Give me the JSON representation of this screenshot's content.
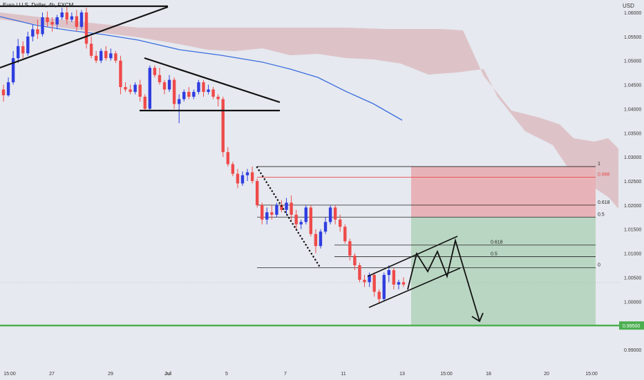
{
  "header": {
    "symbol_title": "Euro / U.S. Dollar, 4h, FXCM"
  },
  "price_axis": {
    "currency": "USD",
    "current_price_label": "0.99500"
  },
  "colors": {
    "up": "#2f3de0",
    "down": "#ef4a4a",
    "cloud": "#d9b2b8",
    "ma": "#3a6de0",
    "target_zone": "#b9d6c2",
    "stop_zone": "#e8b3b8",
    "support_line": "#4caf50"
  },
  "chart_data": {
    "type": "candlestick",
    "y_ticks": [
      "1.06000",
      "1.05500",
      "1.05000",
      "1.04500",
      "1.04000",
      "1.03500",
      "1.03000",
      "1.02500",
      "1.02000",
      "1.01500",
      "1.01000",
      "1.00500",
      "1.00000",
      "0.99500",
      "0.99000"
    ],
    "x_ticks": [
      "15:00",
      "27",
      "29",
      "Jul",
      "5",
      "7",
      "11",
      "13",
      "15:00",
      "18",
      "20",
      "15:00"
    ],
    "ylim": [
      0.9875,
      1.0615
    ],
    "support_price": 0.995,
    "fib_upper": {
      "levels": [
        "1",
        "0.886",
        "0.618",
        "0.5"
      ],
      "prices": [
        1.028,
        1.0258,
        1.02,
        1.0175
      ]
    },
    "fib_lower": {
      "levels": [
        "0.618",
        "0.5",
        "0"
      ],
      "prices": [
        1.0117,
        1.0093,
        1.007
      ]
    },
    "trade_box": {
      "entry": 1.0175,
      "stop": 1.028,
      "target": 0.995
    },
    "candles": [
      [
        1.044,
        1.045,
        1.0415,
        1.0428
      ],
      [
        1.0428,
        1.0465,
        1.0425,
        1.0455
      ],
      [
        1.0455,
        1.052,
        1.045,
        1.0505
      ],
      [
        1.0505,
        1.0545,
        1.0495,
        1.053
      ],
      [
        1.053,
        1.054,
        1.0505,
        1.0515
      ],
      [
        1.0515,
        1.056,
        1.051,
        1.055
      ],
      [
        1.055,
        1.0575,
        1.054,
        1.0565
      ],
      [
        1.0565,
        1.0585,
        1.0545,
        1.0555
      ],
      [
        1.0555,
        1.06,
        1.055,
        1.059
      ],
      [
        1.059,
        1.0602,
        1.057,
        1.058
      ],
      [
        1.058,
        1.059,
        1.056,
        1.0575
      ],
      [
        1.0575,
        1.0595,
        1.0565,
        1.059
      ],
      [
        1.059,
        1.061,
        1.0585,
        1.06
      ],
      [
        1.06,
        1.0612,
        1.0575,
        1.0585
      ],
      [
        1.0585,
        1.06,
        1.058,
        1.0592
      ],
      [
        1.0592,
        1.0605,
        1.056,
        1.057
      ],
      [
        1.057,
        1.0605,
        1.0565,
        1.06
      ],
      [
        1.06,
        1.061,
        1.0525,
        1.0535
      ],
      [
        1.0535,
        1.055,
        1.0505,
        1.051
      ],
      [
        1.051,
        1.052,
        1.0495,
        1.05
      ],
      [
        1.05,
        1.0525,
        1.0495,
        1.052
      ],
      [
        1.052,
        1.053,
        1.05,
        1.0505
      ],
      [
        1.0505,
        1.0525,
        1.05,
        1.0515
      ],
      [
        1.0515,
        1.052,
        1.0495,
        1.05
      ],
      [
        1.05,
        1.051,
        1.043,
        1.0445
      ],
      [
        1.0445,
        1.0455,
        1.0435,
        1.044
      ],
      [
        1.044,
        1.045,
        1.043,
        1.0435
      ],
      [
        1.0435,
        1.0455,
        1.043,
        1.045
      ],
      [
        1.045,
        1.046,
        1.0415,
        1.0425
      ],
      [
        1.0425,
        1.043,
        1.0395,
        1.04
      ],
      [
        1.04,
        1.049,
        1.0395,
        1.0485
      ],
      [
        1.0485,
        1.049,
        1.0465,
        1.047
      ],
      [
        1.047,
        1.0485,
        1.045,
        1.0455
      ],
      [
        1.0455,
        1.046,
        1.043,
        1.044
      ],
      [
        1.044,
        1.047,
        1.0435,
        1.046
      ],
      [
        1.046,
        1.0465,
        1.04,
        1.041
      ],
      [
        1.041,
        1.043,
        1.037,
        1.042
      ],
      [
        1.042,
        1.044,
        1.0415,
        1.0435
      ],
      [
        1.0435,
        1.0445,
        1.042,
        1.0425
      ],
      [
        1.0425,
        1.044,
        1.042,
        1.0435
      ],
      [
        1.0435,
        1.046,
        1.043,
        1.0455
      ],
      [
        1.0455,
        1.046,
        1.0425,
        1.0435
      ],
      [
        1.0435,
        1.045,
        1.043,
        1.044
      ],
      [
        1.044,
        1.0445,
        1.042,
        1.0425
      ],
      [
        1.0425,
        1.043,
        1.0405,
        1.042
      ],
      [
        1.042,
        1.0425,
        1.03,
        1.031
      ],
      [
        1.031,
        1.032,
        1.028,
        1.0285
      ],
      [
        1.0285,
        1.029,
        1.026,
        1.0265
      ],
      [
        1.0265,
        1.0275,
        1.0235,
        1.0245
      ],
      [
        1.0245,
        1.027,
        1.024,
        1.0262
      ],
      [
        1.0262,
        1.0275,
        1.025,
        1.0268
      ],
      [
        1.0268,
        1.028,
        1.0245,
        1.025
      ],
      [
        1.025,
        1.0255,
        1.0195,
        1.02
      ],
      [
        1.02,
        1.0205,
        1.016,
        1.017
      ],
      [
        1.017,
        1.0195,
        1.016,
        1.0185
      ],
      [
        1.0185,
        1.02,
        1.017,
        1.018
      ],
      [
        1.018,
        1.0205,
        1.0175,
        1.02
      ],
      [
        1.02,
        1.021,
        1.0185,
        1.019
      ],
      [
        1.019,
        1.0215,
        1.018,
        1.0205
      ],
      [
        1.0205,
        1.022,
        1.017,
        1.018
      ],
      [
        1.018,
        1.019,
        1.015,
        1.016
      ],
      [
        1.016,
        1.017,
        1.015,
        1.0165
      ],
      [
        1.0165,
        1.02,
        1.016,
        1.0195
      ],
      [
        1.0195,
        1.02,
        1.0135,
        1.014
      ],
      [
        1.014,
        1.015,
        1.01,
        1.0115
      ],
      [
        1.0115,
        1.015,
        1.011,
        1.0145
      ],
      [
        1.0145,
        1.0175,
        1.014,
        1.0165
      ],
      [
        1.0165,
        1.02,
        1.016,
        1.0195
      ],
      [
        1.0195,
        1.02,
        1.016,
        1.017
      ],
      [
        1.017,
        1.018,
        1.0145,
        1.0155
      ],
      [
        1.0155,
        1.016,
        1.012,
        1.0125
      ],
      [
        1.0125,
        1.013,
        1.0085,
        1.0095
      ],
      [
        1.0095,
        1.01,
        1.0065,
        1.0075
      ],
      [
        1.0075,
        1.008,
        1.004,
        1.0045
      ],
      [
        1.0045,
        1.0055,
        1.003,
        1.004
      ],
      [
        1.004,
        1.006,
        1.003,
        1.0055
      ],
      [
        1.0055,
        1.006,
        1.001,
        1.002
      ],
      [
        1.002,
        1.0025,
        0.9995,
        1.0005
      ],
      [
        1.0005,
        1.006,
        1.0,
        1.0055
      ],
      [
        1.0055,
        1.0075,
        1.004,
        1.0065
      ],
      [
        1.0065,
        1.007,
        1.0025,
        1.0035
      ],
      [
        1.0035,
        1.0045,
        1.0025,
        1.004
      ],
      [
        1.004,
        1.005,
        1.003,
        1.0035
      ]
    ]
  }
}
